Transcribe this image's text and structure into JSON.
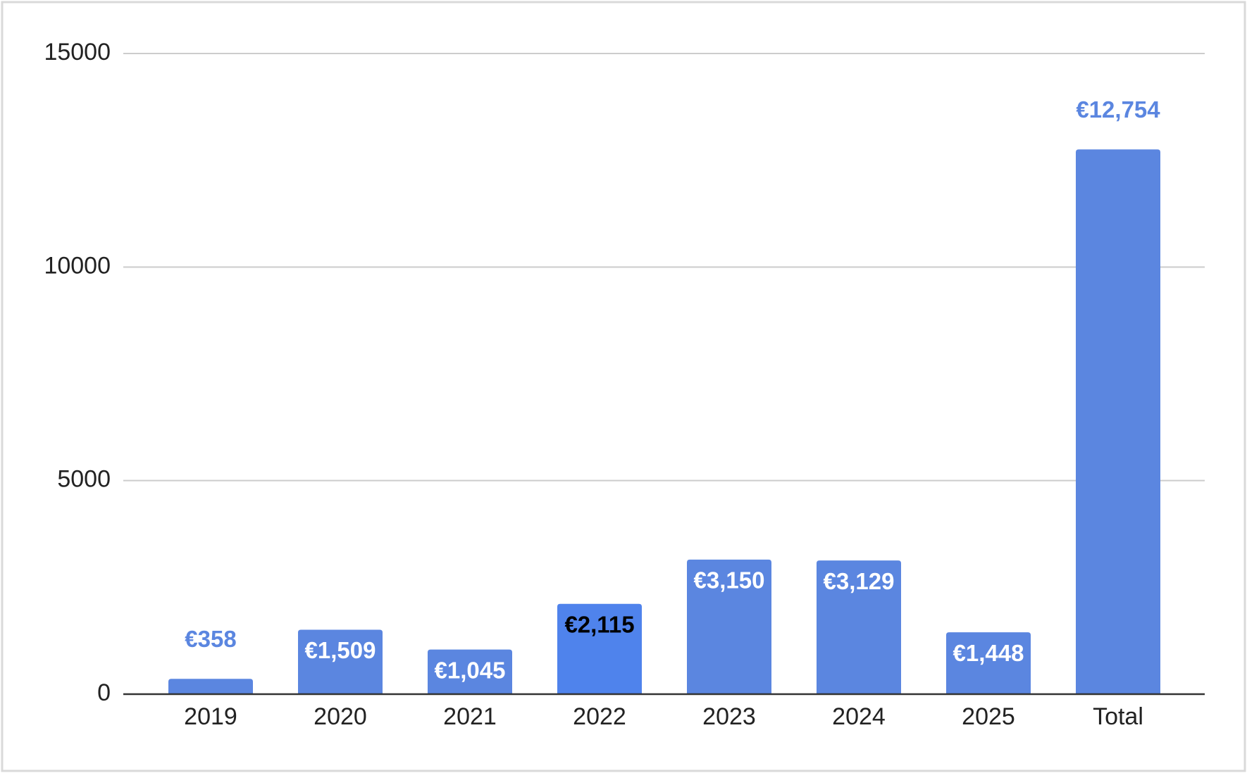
{
  "chart_data": {
    "type": "bar",
    "categories": [
      "2019",
      "2020",
      "2021",
      "2022",
      "2023",
      "2024",
      "2025",
      "Total"
    ],
    "values": [
      358,
      1509,
      1045,
      2115,
      3150,
      3129,
      1448,
      12754
    ],
    "value_labels": [
      "€358",
      "€1,509",
      "€1,045",
      "€2,115",
      "€3,150",
      "€3,129",
      "€1,448",
      "€12,754"
    ],
    "colors": [
      "#5b86e0",
      "#5b86e0",
      "#5b86e0",
      "#4f83ec",
      "#5b86e0",
      "#5b86e0",
      "#5b86e0",
      "#5b86e0"
    ],
    "value_label_positions": [
      "outside",
      "inside",
      "inside",
      "inside",
      "inside",
      "inside",
      "inside",
      "outside"
    ],
    "value_label_colors": [
      "#5b86e0",
      "#ffffff",
      "#ffffff",
      "#000000",
      "#ffffff",
      "#ffffff",
      "#ffffff",
      "#5b86e0"
    ],
    "ylim": [
      0,
      15000
    ],
    "yticks": [
      0,
      5000,
      10000,
      15000
    ],
    "grid": true
  }
}
